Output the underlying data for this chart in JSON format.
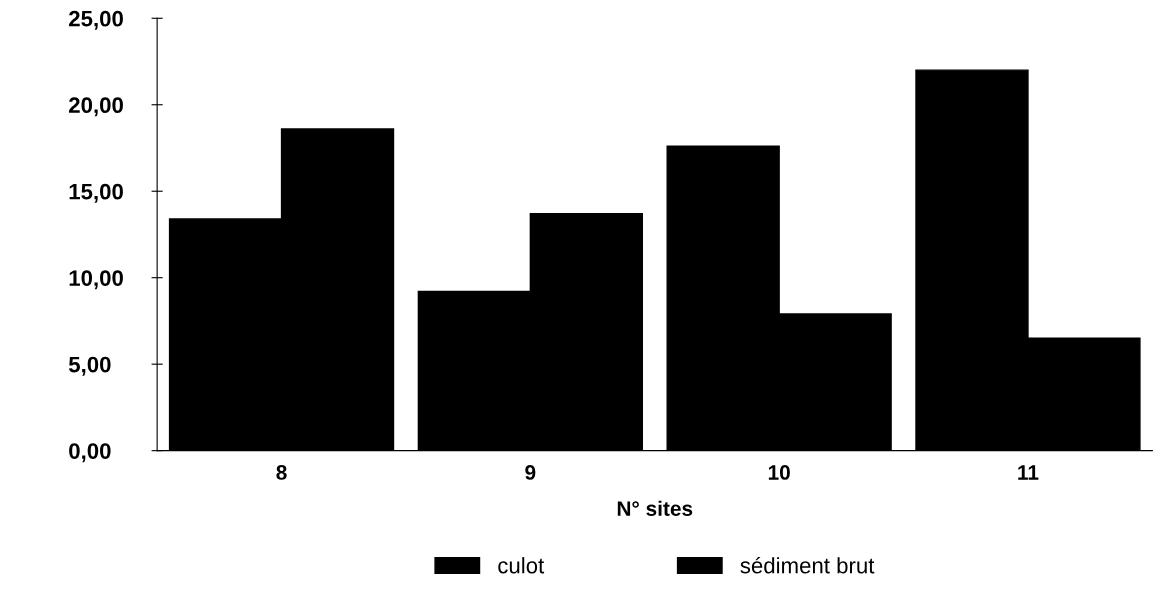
{
  "chart_data": {
    "type": "bar",
    "xlabel": "N° sites",
    "categories": [
      "8",
      "9",
      "10",
      "11"
    ],
    "series": [
      {
        "name": "culot",
        "color": "#000000",
        "values": [
          13.4,
          9.2,
          17.6,
          22.0
        ]
      },
      {
        "name": "sédiment brut",
        "color": "#000000",
        "values": [
          18.6,
          13.7,
          7.9,
          6.5
        ]
      }
    ],
    "ylim": [
      0,
      25
    ],
    "yticks": [
      {
        "value": 0,
        "label": "0,00"
      },
      {
        "value": 5,
        "label": "5,00"
      },
      {
        "value": 10,
        "label": "10,00"
      },
      {
        "value": 15,
        "label": "15,00"
      },
      {
        "value": 20,
        "label": "20,00"
      },
      {
        "value": 25,
        "label": "25,00"
      }
    ],
    "grid": false,
    "legend": "bottom"
  }
}
